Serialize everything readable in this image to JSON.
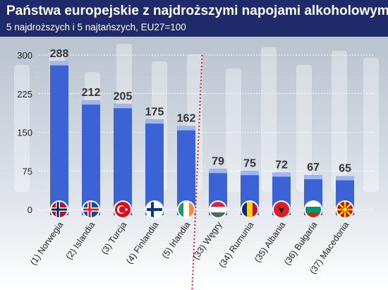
{
  "header": {
    "title": "Państwa europejskie z najdroższymi napojami alkoholowymi",
    "subtitle": "5 najdroższych i 5 najtańszych, EU27=100"
  },
  "colors": {
    "header_bg": "#1f2a6b",
    "bar": "#3b63d6",
    "bar_top": "#9fb7ee",
    "divider": "#d21f1f",
    "value_label": "#333333"
  },
  "chart_data": {
    "type": "bar",
    "title": "Państwa europejskie z najdroższymi napojami alkoholowymi",
    "subtitle": "5 najdroższych i 5 najtańszych, EU27=100",
    "categories": [
      "(1) Norwegia",
      "(2) Islandia",
      "(3) Turcja",
      "(4) Finlandia",
      "(5) Irlandia",
      "(33) Węgry",
      "(34) Rumunia",
      "(35) Albania",
      "(36) Bułgaria",
      "(37) Macedonia"
    ],
    "values": [
      288,
      212,
      205,
      175,
      162,
      79,
      75,
      72,
      67,
      65
    ],
    "flag_icons": [
      "flag-norway-icon",
      "flag-iceland-icon",
      "flag-turkey-icon",
      "flag-finland-icon",
      "flag-ireland-icon",
      "flag-hungary-icon",
      "flag-romania-icon",
      "flag-albania-icon",
      "flag-bulgaria-icon",
      "flag-macedonia-icon"
    ],
    "ylim": [
      0,
      300
    ],
    "yticks": [
      0,
      75,
      150,
      225,
      300
    ],
    "grid": true,
    "divider_after_category": 5,
    "xlabel": "",
    "ylabel": ""
  }
}
